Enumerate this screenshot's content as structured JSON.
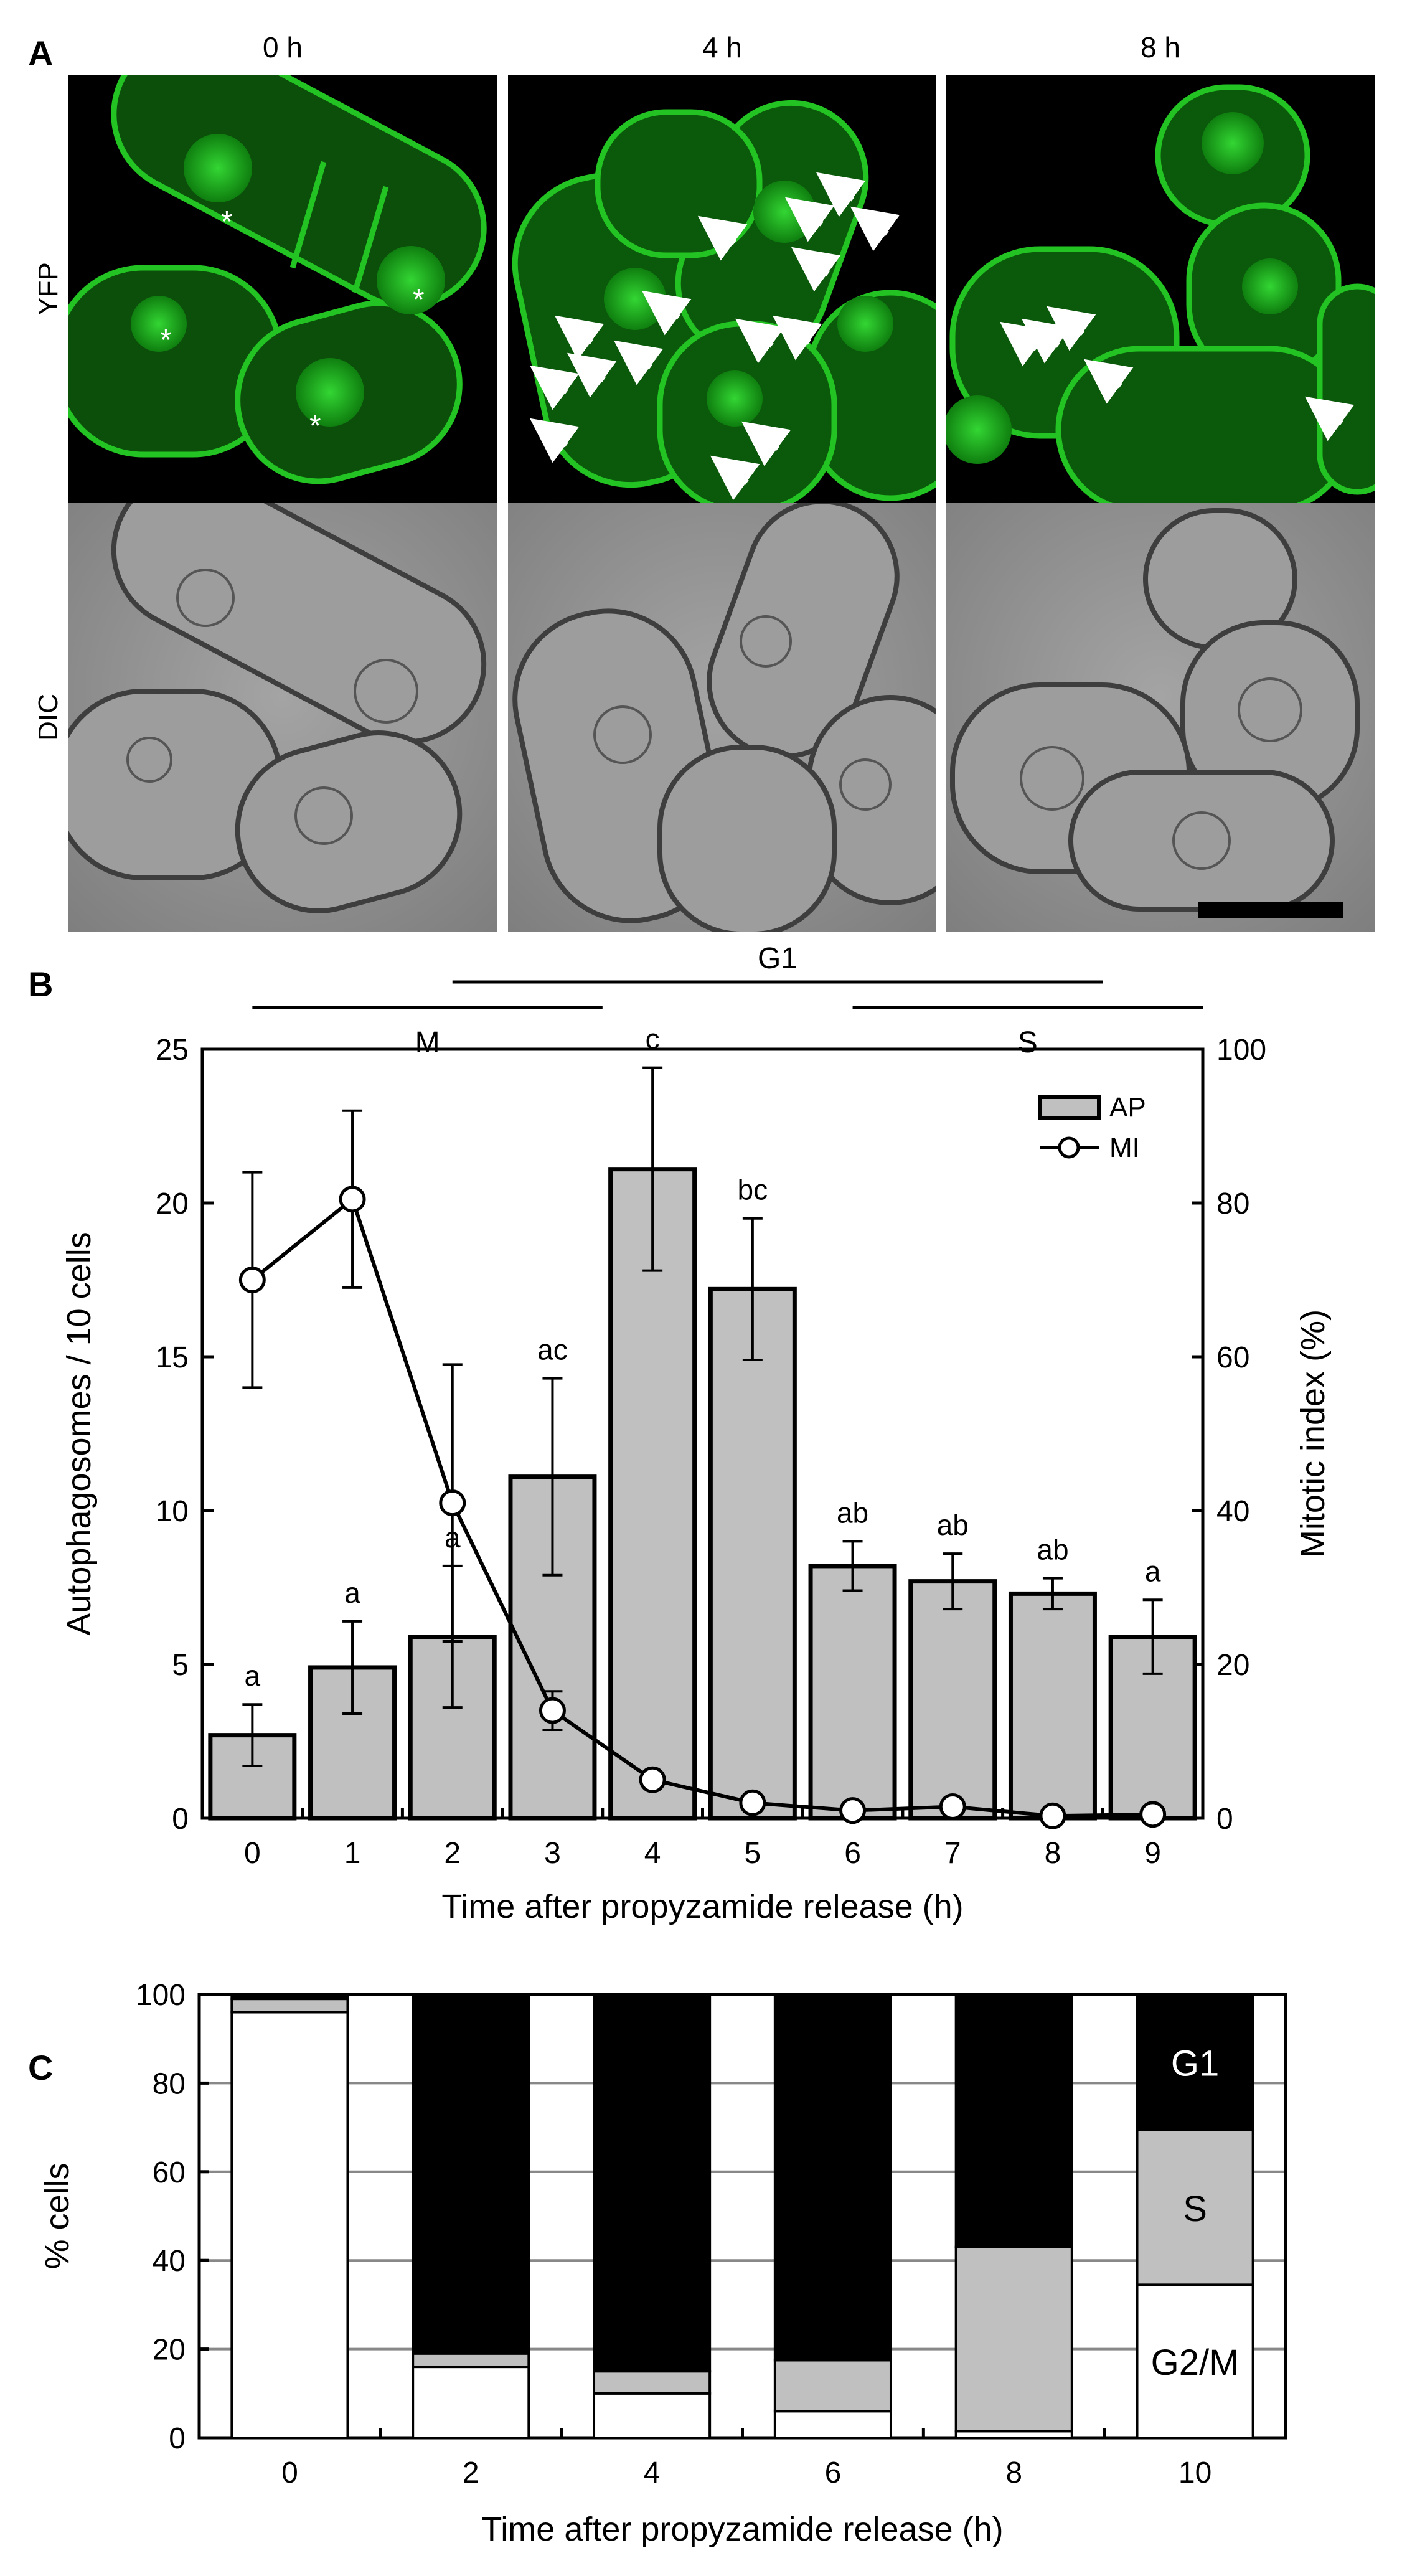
{
  "panel_a": {
    "letter": "A",
    "time_labels": [
      "0 h",
      "4 h",
      "8 h"
    ],
    "row_labels": [
      "YFP",
      "DIC"
    ],
    "annotations": {
      "nucleus_marker": "*",
      "autophagosome_marker": "arrow"
    },
    "colors": {
      "fluorescence": "#1faa1f",
      "background": "#000000",
      "dic": "#9a9a9a"
    }
  },
  "panel_b": {
    "letter": "B",
    "phase_labels": [
      "M",
      "G1",
      "S"
    ],
    "legend": [
      "AP",
      "MI"
    ]
  },
  "panel_c": {
    "letter": "C",
    "inbar_labels": [
      "G1",
      "S",
      "G2/M"
    ]
  },
  "chart_data": [
    {
      "type": "bar",
      "panel": "B",
      "categories": [
        0,
        1,
        2,
        3,
        4,
        5,
        6,
        7,
        8,
        9
      ],
      "xlabel": "Time after propyzamide release (h)",
      "ylabel": "Autophagosomes / 10 cells",
      "ylim": [
        0,
        25
      ],
      "yticks": [
        0,
        5,
        10,
        15,
        20,
        25
      ],
      "y2label": "Mitotic index (%)",
      "y2lim": [
        0,
        100
      ],
      "y2ticks": [
        0,
        20,
        40,
        60,
        80,
        100
      ],
      "series": [
        {
          "name": "AP",
          "kind": "bar",
          "axis": "left",
          "values": [
            2.7,
            4.9,
            5.9,
            11.1,
            21.1,
            17.2,
            8.2,
            7.7,
            7.3,
            5.9
          ],
          "errors": [
            1.0,
            1.5,
            2.3,
            3.2,
            3.3,
            2.3,
            0.8,
            0.9,
            0.5,
            1.2
          ],
          "letters": [
            "a",
            "a",
            "a",
            "ac",
            "c",
            "bc",
            "ab",
            "ab",
            "ab",
            "a"
          ],
          "color": "#c0c0c0"
        },
        {
          "name": "MI",
          "kind": "line",
          "axis": "right",
          "values": [
            70,
            80.5,
            41,
            14,
            5,
            2,
            1,
            1.5,
            0.3,
            0.5
          ],
          "errors": [
            14,
            11.5,
            18,
            2.5,
            0,
            0,
            0,
            0,
            0,
            0
          ],
          "color": "#000000"
        }
      ],
      "phase_bars": [
        {
          "label": "M",
          "from": 0,
          "to": 3.5
        },
        {
          "label": "G1",
          "from": 2,
          "to": 8.5
        },
        {
          "label": "S",
          "from": 6,
          "to": 9.5
        }
      ],
      "legend_position": "top-right"
    },
    {
      "type": "bar",
      "stacked": true,
      "panel": "C",
      "categories": [
        0,
        2,
        4,
        6,
        8,
        10
      ],
      "xlabel": "Time after propyzamide release (h)",
      "ylabel": "% cells",
      "ylim": [
        0,
        100
      ],
      "yticks": [
        0,
        20,
        40,
        60,
        80,
        100
      ],
      "grid": true,
      "series": [
        {
          "name": "G2/M",
          "values": [
            96,
            16,
            10,
            6,
            1.5,
            34.5
          ],
          "color": "#ffffff"
        },
        {
          "name": "S",
          "values": [
            3,
            3,
            5,
            11.5,
            41.5,
            35
          ],
          "color": "#c0c0c0"
        },
        {
          "name": "G1",
          "values": [
            1,
            81,
            85,
            82.5,
            57,
            30.5
          ],
          "color": "#000000"
        }
      ]
    }
  ]
}
